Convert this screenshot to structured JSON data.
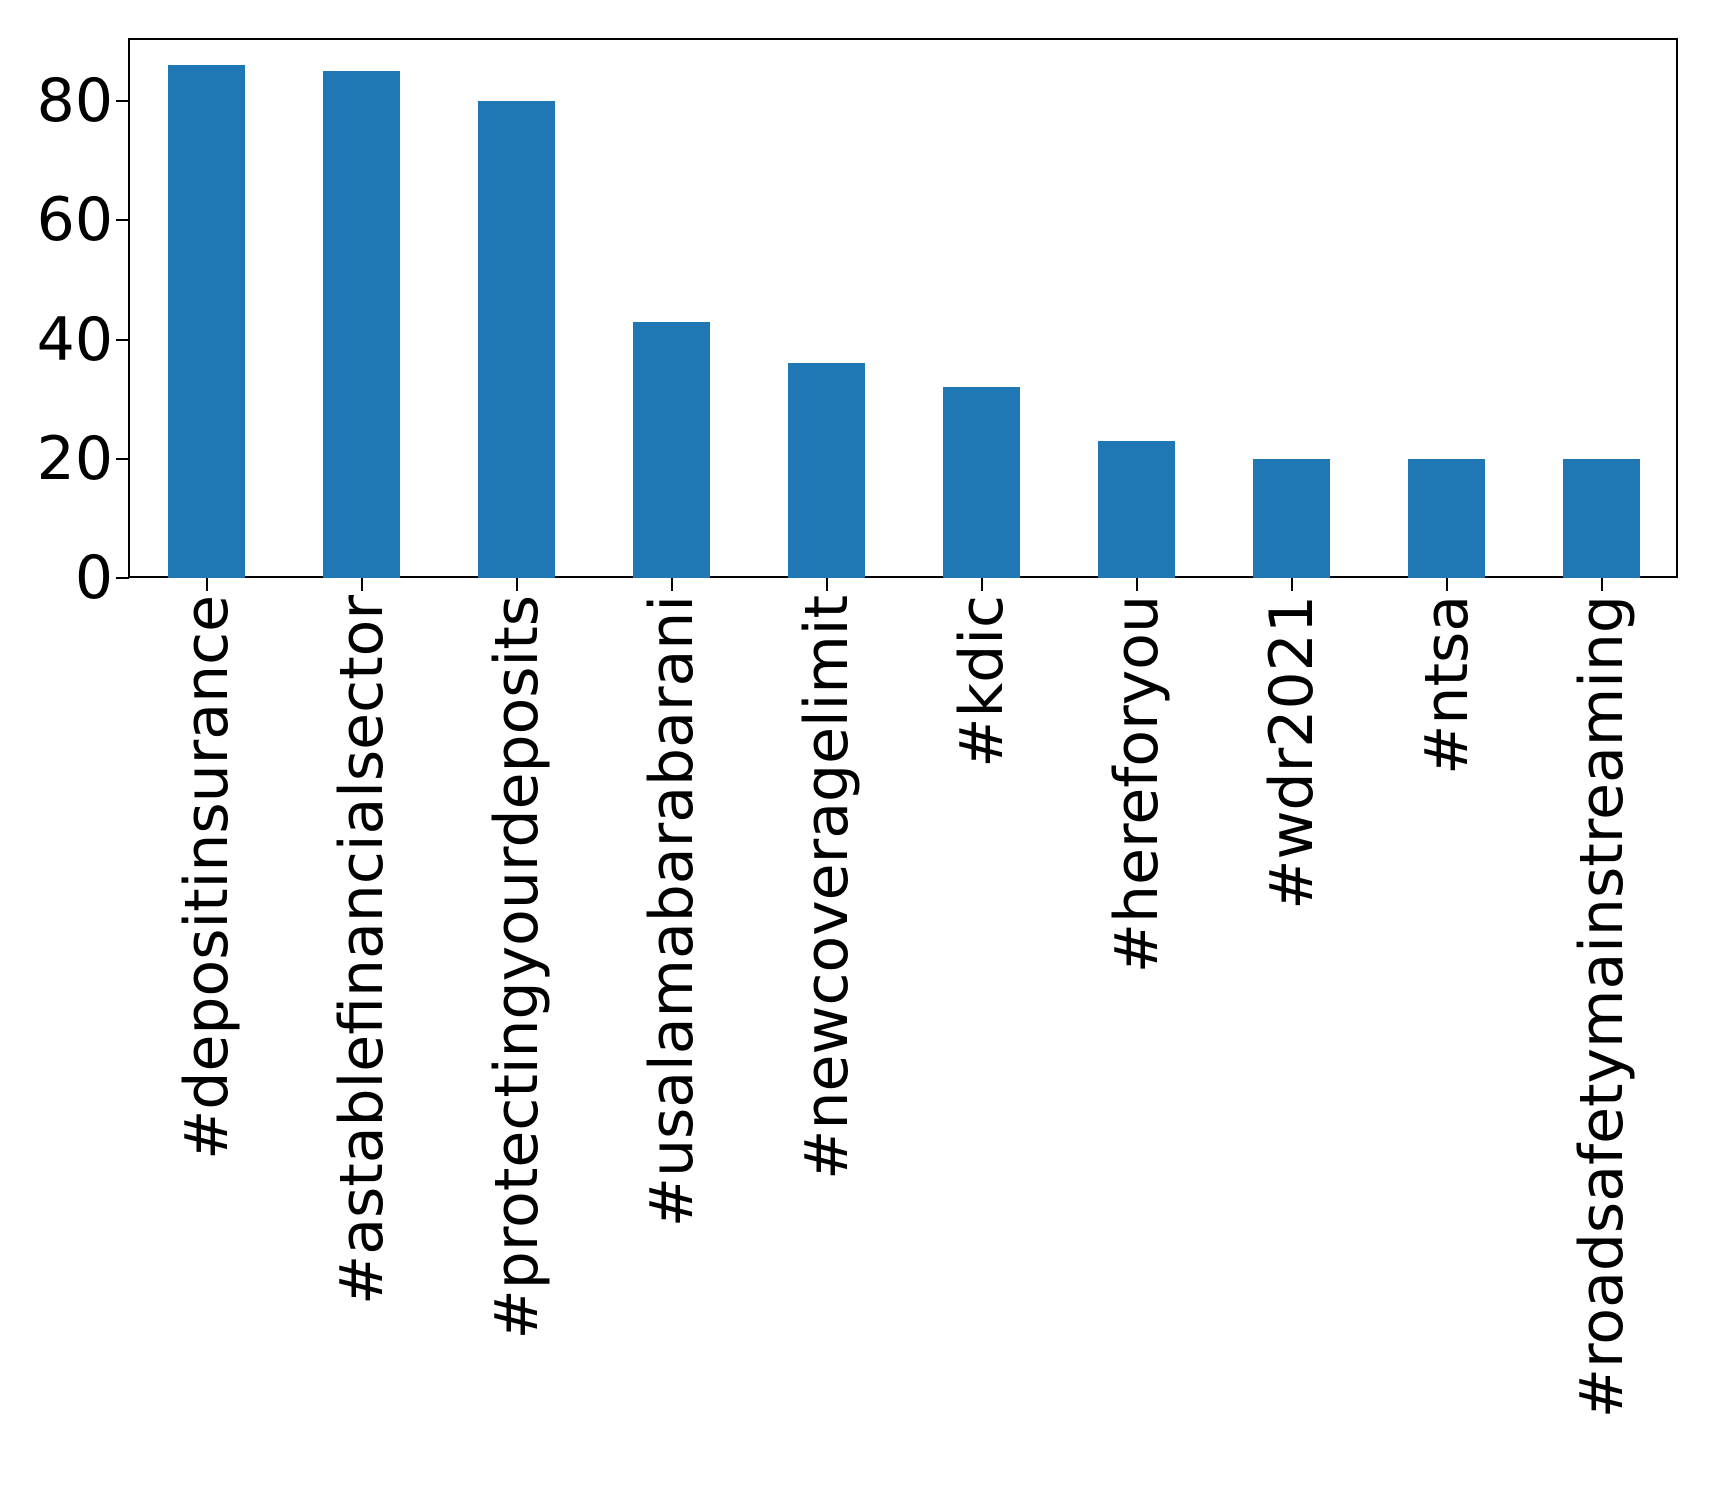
{
  "chart_data": {
    "type": "bar",
    "categories": [
      "#depositinsurance",
      "#astablefinancialsector",
      "#protectingyourdeposits",
      "#usalamabarabarani",
      "#newcoveragelimit",
      "#kdic",
      "#hereforyou",
      "#wdr2021",
      "#ntsa",
      "#roadsafetymainstreaming"
    ],
    "values": [
      86,
      85,
      80,
      43,
      36,
      32,
      23,
      20,
      20,
      20
    ],
    "title": "",
    "xlabel": "",
    "ylabel": "",
    "yticks": [
      0,
      20,
      40,
      60,
      80
    ],
    "ylim": [
      0,
      90.4
    ],
    "xtick_rotation": 90,
    "grid": false,
    "legend": null,
    "bar_color": "#1f77b4",
    "axis_color": "#000000",
    "background_color": "#ffffff"
  }
}
